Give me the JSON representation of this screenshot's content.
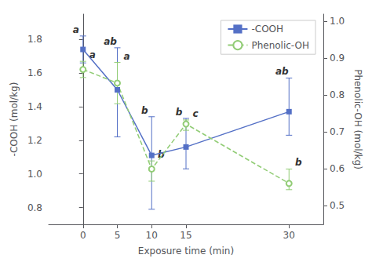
{
  "chart_data": {
    "type": "line",
    "xlabel": "Exposure time (min)",
    "ylabel": "-COOH (mol/kg)",
    "y2label": "Phenolic-OH (mol/kg)",
    "x": [
      0,
      5,
      10,
      15,
      30
    ],
    "xlim": [
      -5,
      35
    ],
    "xticks": [
      0,
      5,
      10,
      15,
      30
    ],
    "ylim": [
      0.7,
      1.95
    ],
    "yticks": [
      0.8,
      {
        "value": 1.0,
        "label": "1.0"
      },
      1.2,
      1.4,
      1.6,
      1.8
    ],
    "y2lim": [
      0.45,
      1.02
    ],
    "y2ticks": [
      0.5,
      0.6,
      0.7,
      0.8,
      0.9,
      {
        "value": 1.0,
        "label": "1.0"
      }
    ],
    "grid": false,
    "legend": "upper right",
    "series": [
      {
        "name": "-COOH",
        "values": [
          1.74,
          1.5,
          1.11,
          1.16,
          1.37
        ],
        "error_upper": [
          0.08,
          0.25,
          0.23,
          0.17,
          0.2
        ],
        "error_lower": [
          0.08,
          0.28,
          0.32,
          0.13,
          0.14
        ],
        "annotations": [
          "a",
          "ab",
          "b",
          "b",
          "ab"
        ],
        "marker": "square",
        "line_style": "solid"
      },
      {
        "name": "Phenolic-OH",
        "axis": "y2",
        "values": [
          0.87,
          0.833,
          0.6,
          0.722,
          0.561
        ],
        "error_upper": [
          0.022,
          0.056,
          0.022,
          0.011,
          0.039
        ],
        "error_lower": [
          0.022,
          0.056,
          0.033,
          0.017,
          0.017
        ],
        "annotations": [
          "a",
          "a",
          "b",
          "c",
          "b"
        ],
        "marker": "hollow_circle",
        "line_style": "dashed"
      }
    ]
  }
}
